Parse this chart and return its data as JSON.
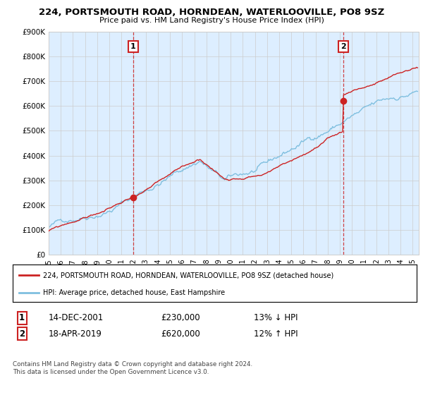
{
  "title": "224, PORTSMOUTH ROAD, HORNDEAN, WATERLOOVILLE, PO8 9SZ",
  "subtitle": "Price paid vs. HM Land Registry's House Price Index (HPI)",
  "ylabel_ticks": [
    "£0",
    "£100K",
    "£200K",
    "£300K",
    "£400K",
    "£500K",
    "£600K",
    "£700K",
    "£800K",
    "£900K"
  ],
  "ylim": [
    0,
    900000
  ],
  "xlim_start": 1995.0,
  "xlim_end": 2025.5,
  "sale1_date": 2001.96,
  "sale1_price": 230000,
  "sale2_date": 2019.29,
  "sale2_price": 620000,
  "hpi_color": "#7fbfdf",
  "price_color": "#cc2222",
  "vline_color": "#cc2222",
  "fill_color": "#ddeeff",
  "legend_line1": "224, PORTSMOUTH ROAD, HORNDEAN, WATERLOOVILLE, PO8 9SZ (detached house)",
  "legend_line2": "HPI: Average price, detached house, East Hampshire",
  "table_row1_num": "1",
  "table_row1_date": "14-DEC-2001",
  "table_row1_price": "£230,000",
  "table_row1_hpi": "13% ↓ HPI",
  "table_row2_num": "2",
  "table_row2_date": "18-APR-2019",
  "table_row2_price": "£620,000",
  "table_row2_hpi": "12% ↑ HPI",
  "footer": "Contains HM Land Registry data © Crown copyright and database right 2024.\nThis data is licensed under the Open Government Licence v3.0.",
  "background_color": "#ffffff",
  "grid_color": "#cccccc"
}
